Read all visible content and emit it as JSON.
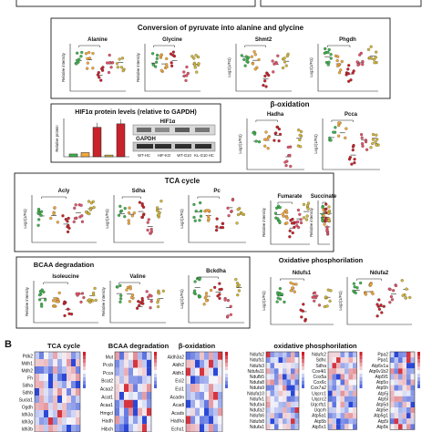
{
  "figure": {
    "panel_b_label": "B"
  },
  "sections": {
    "pyruvate": {
      "title": "Conversion of pyruvate into alanine and glycine"
    },
    "hif": {
      "title": "HIF1α protein levels (relative to GAPDH)",
      "blot_hif": "HIF1α",
      "blot_gapdh": "GAPDH",
      "blot_lanes": [
        "WT-HC",
        "HIF-KO",
        "WT-G10",
        "KL-G10 HC"
      ]
    },
    "beta_ox": {
      "title": "β-oxidation"
    },
    "tca": {
      "title": "TCA cycle"
    },
    "bcaa": {
      "title": "BCAA degradation"
    },
    "oxphos": {
      "title": "Oxidative phosphorilation"
    }
  },
  "plots": {
    "alanine": {
      "title": "Alanine",
      "ylabel": "Relative intensity"
    },
    "glycine": {
      "title": "Glycine",
      "ylabel": "Relative intensity"
    },
    "shmt2": {
      "title": "Shmt2",
      "ylabel": "Log2(1/FΩ)"
    },
    "phgdh": {
      "title": "Phgdh",
      "ylabel": "Log2(1/FΩ)"
    },
    "hadha": {
      "title": "Hadha",
      "ylabel": "Log2(1/FΩ)"
    },
    "pcca": {
      "title": "Pcca",
      "ylabel": "Log2(1/FΩ)"
    },
    "acly": {
      "title": "Acly",
      "ylabel": "Log2(1/FΩ)"
    },
    "sdha": {
      "title": "Sdha",
      "ylabel": "Log2(1/FΩ)"
    },
    "pc": {
      "title": "Pc",
      "ylabel": "Log2(1/FΩ)"
    },
    "fumarate": {
      "title": "Fumarate",
      "ylabel": "Relative intensity"
    },
    "succinate": {
      "title": "Succinate",
      "ylabel": "Relative intensity"
    },
    "isoleucine": {
      "title": "Isoleucine",
      "ylabel": "Relative intensity"
    },
    "valine": {
      "title": "Valine",
      "ylabel": "Relative intensity"
    },
    "bckdha": {
      "title": "Bckdha",
      "ylabel": "Log2(1/FΩ)"
    },
    "ndufs1": {
      "title": "Ndufs1",
      "ylabel": "Log2(1/FΩ)"
    },
    "ndufa2": {
      "title": "Ndufa2",
      "ylabel": "Log2(1/FΩ)"
    },
    "hif_bar": {
      "ylabel": "Relative protein"
    }
  },
  "heatmaps": {
    "tca": {
      "title": "TCA cycle",
      "genes": [
        "Pdk2",
        "Mdh1",
        "Mdh2",
        "Fh",
        "Sdha",
        "Sdhb",
        "Sucla1",
        "Ogdh",
        "Idh3a",
        "Idh3g",
        "Idh3b"
      ]
    },
    "bcaa": {
      "title": "BCAA degradation",
      "genes": [
        "Mut",
        "Pccb",
        "Pcca",
        "Bcat2",
        "Acaa2",
        "Acat1",
        "Acaa1",
        "Hmgcl",
        "Hadh",
        "Hibch"
      ]
    },
    "beta": {
      "title": "β-oxidation",
      "genes": [
        "Aldh3a2",
        "Aldh2",
        "Aldh1",
        "Eci2",
        "Eci1",
        "Acadm",
        "Acadl",
        "Acads",
        "Hadha",
        "Echs1"
      ]
    },
    "oxphos": {
      "title": "oxidative phosphorilation",
      "genes_a": [
        "Ndufs2",
        "Ndufs1",
        "Ndufs3",
        "Ndufa11",
        "Ndufb5",
        "Ndufa8",
        "Ndufa9",
        "Ndufa10",
        "Ndufv1",
        "Ndufa4",
        "Ndufa2",
        "Ndufs6",
        "Ndufs8",
        "Ndufa1"
      ],
      "genes_b": [
        "Ndufc2",
        "Sdhc",
        "Sdha",
        "Cox4i1",
        "Cox5a",
        "Cox6c",
        "Cox7a2",
        "Uqcrc1",
        "Uqcrc2",
        "Uqcrfs1",
        "Uqcrh",
        "Atp5a1",
        "Atp5b",
        "Atp5c1"
      ],
      "genes_c": [
        "Ppa2",
        "Ppa1",
        "Atp6v1a",
        "Atp6v1b2",
        "Atp5f1",
        "Atp5o",
        "Atp5h",
        "Atp5j",
        "Atp5l",
        "Atp5d",
        "Atp5e",
        "Atp5g1",
        "Atp5i",
        "Atp5k"
      ]
    }
  },
  "colors": {
    "healthy": "#3fb34f",
    "group2": "#f3a83b",
    "group3": "#c8222a",
    "group4": "#e3546a",
    "group5": "#d4b73a",
    "heat_low": "#1f3fd6",
    "heat_high": "#d21f2a"
  }
}
